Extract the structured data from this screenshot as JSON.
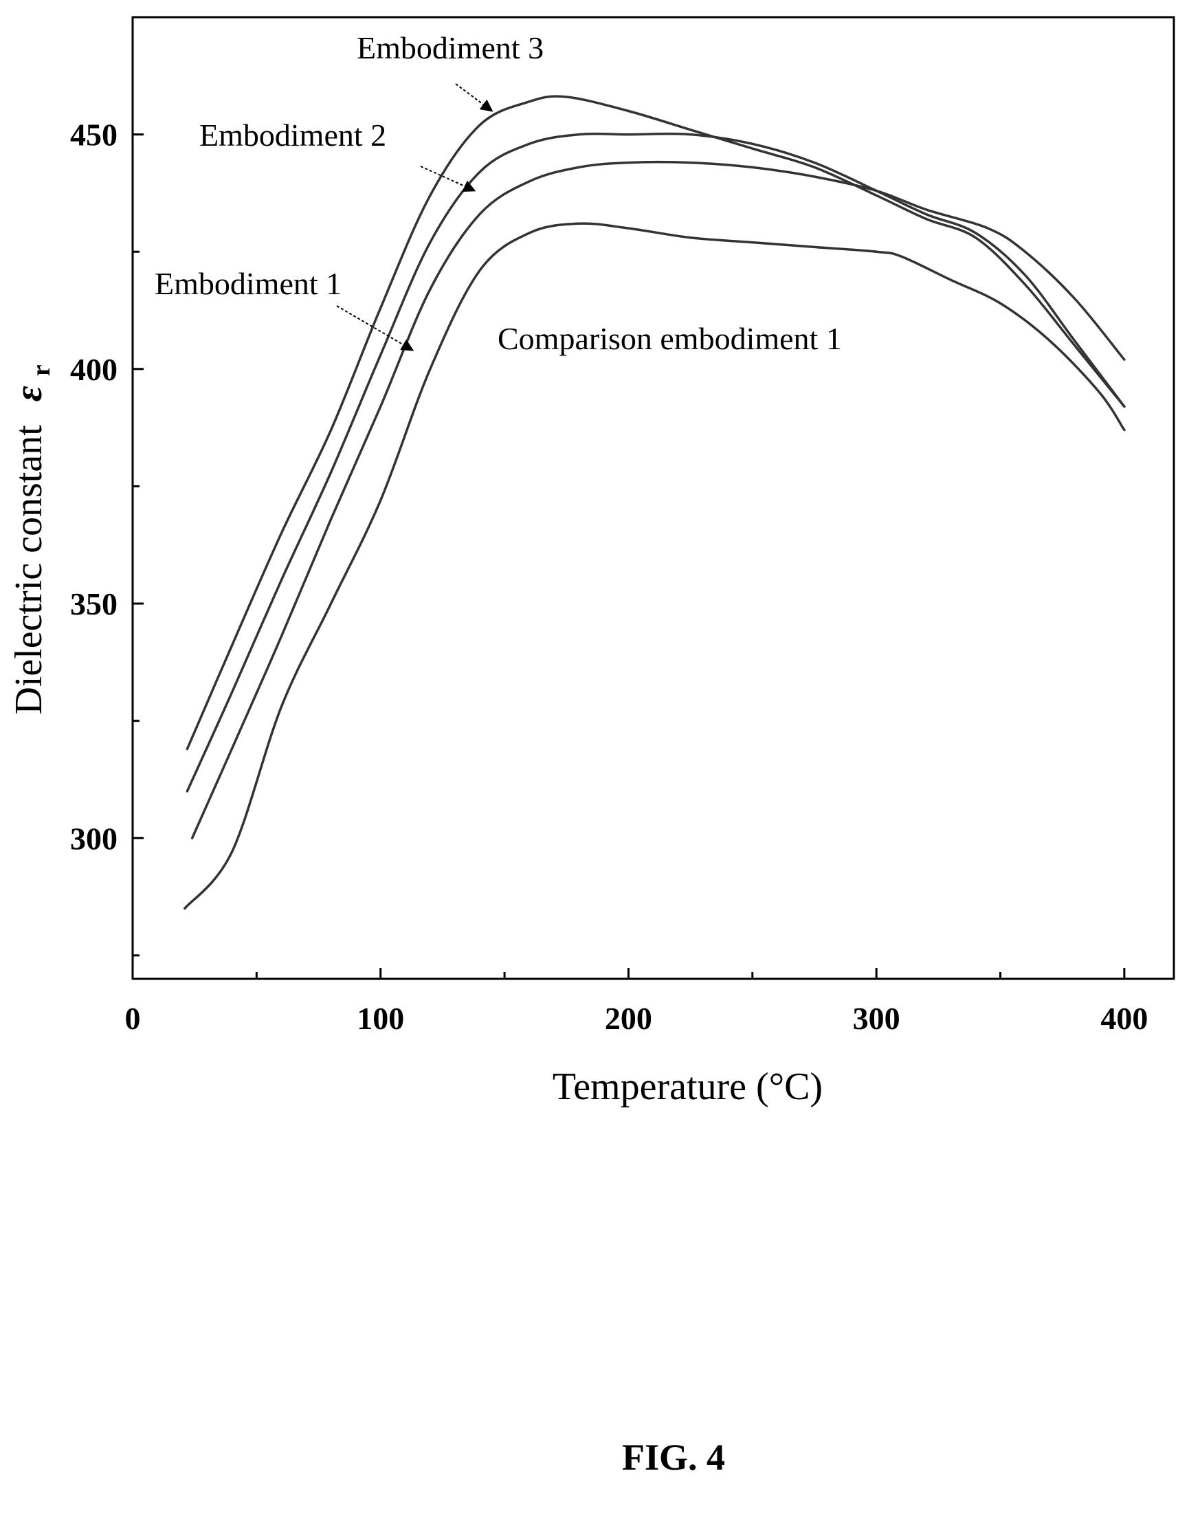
{
  "figure_label": "FIG. 4",
  "chart_data": {
    "type": "line",
    "xlabel": "Temperature (°C)",
    "ylabel": "Dielectric constant",
    "ylabel_symbol": "ε",
    "ylabel_subscript": "r",
    "xlim": [
      0,
      420
    ],
    "ylim": [
      270,
      475
    ],
    "xticks": [
      0,
      100,
      200,
      300,
      400
    ],
    "yticks": [
      300,
      350,
      400,
      450
    ],
    "grid": false,
    "legend": "none",
    "series": [
      {
        "name": "Embodiment 3",
        "x": [
          22,
          40,
          60,
          80,
          100,
          120,
          140,
          160,
          175,
          200,
          225,
          250,
          275,
          300,
          320,
          340,
          360,
          380,
          400
        ],
        "values": [
          319,
          341,
          365,
          387,
          413,
          437,
          452,
          457,
          458,
          455,
          451,
          447,
          443,
          437,
          432,
          428,
          418,
          405,
          392
        ]
      },
      {
        "name": "Embodiment 2",
        "x": [
          22,
          40,
          60,
          80,
          100,
          120,
          140,
          160,
          180,
          200,
          225,
          250,
          275,
          300,
          320,
          340,
          360,
          380,
          400
        ],
        "values": [
          310,
          331,
          355,
          378,
          403,
          427,
          442,
          448,
          450,
          450,
          450,
          448,
          444,
          438,
          433,
          429,
          420,
          406,
          392
        ]
      },
      {
        "name": "Embodiment 1",
        "x": [
          24,
          40,
          60,
          80,
          100,
          120,
          140,
          160,
          180,
          200,
          225,
          250,
          275,
          300,
          320,
          345,
          360,
          380,
          400
        ],
        "values": [
          300,
          319,
          343,
          368,
          392,
          417,
          433,
          440,
          443,
          444,
          444,
          443,
          441,
          438,
          434,
          430,
          425,
          415,
          402
        ]
      },
      {
        "name": "Comparison embodiment 1",
        "x": [
          21,
          40,
          60,
          80,
          100,
          120,
          140,
          160,
          180,
          200,
          225,
          250,
          275,
          300,
          310,
          330,
          350,
          370,
          390,
          400
        ],
        "values": [
          285,
          297,
          328,
          350,
          372,
          400,
          421,
          429,
          431,
          430,
          428,
          427,
          426,
          425,
          424,
          419,
          414,
          406,
          395,
          387
        ]
      }
    ],
    "annotations": [
      {
        "text": "Embodiment 3",
        "series": "Embodiment 3",
        "arrow_to": [
          145,
          455
        ]
      },
      {
        "text": "Embodiment 2",
        "series": "Embodiment 2",
        "arrow_to": [
          138,
          438
        ]
      },
      {
        "text": "Embodiment 1",
        "series": "Embodiment 1",
        "arrow_to": [
          113,
          404
        ]
      },
      {
        "text": "Comparison embodiment 1",
        "series": "Comparison embodiment 1",
        "arrow_to": null
      }
    ]
  }
}
